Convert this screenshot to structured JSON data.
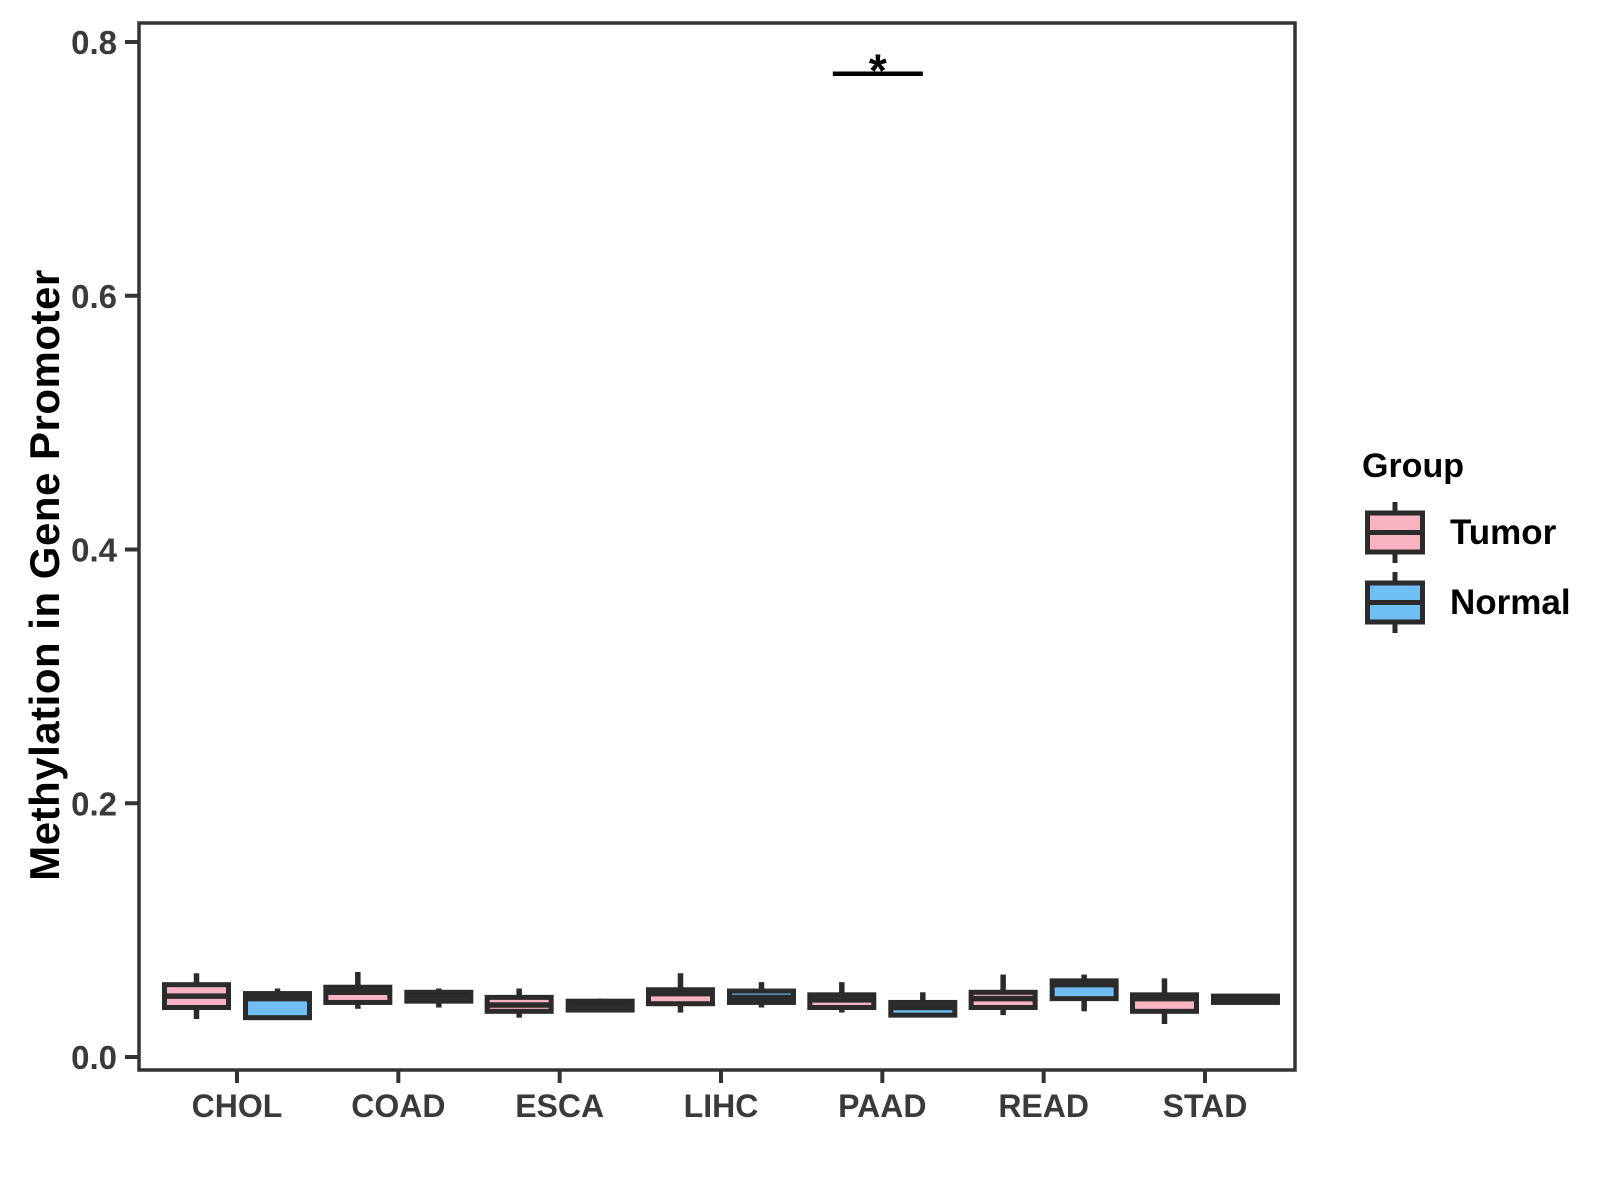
{
  "chart_data": {
    "type": "boxplot",
    "ylabel": "Methylation in Gene Promoter",
    "xlabel": "",
    "ylim": [
      0.0,
      0.8
    ],
    "grid": false,
    "yticks": [
      {
        "label": "0.0",
        "value": 0.0
      },
      {
        "label": "0.2",
        "value": 0.2
      },
      {
        "label": "0.4",
        "value": 0.4
      },
      {
        "label": "0.6",
        "value": 0.6
      },
      {
        "label": "0.8",
        "value": 0.8
      }
    ],
    "categories": [
      "CHOL",
      "COAD",
      "ESCA",
      "LIHC",
      "PAAD",
      "READ",
      "STAD"
    ],
    "legend": {
      "title": "Group",
      "position": "right",
      "entries": [
        {
          "label": "Tumor",
          "color": "#F9B3C3"
        },
        {
          "label": "Normal",
          "color": "#6FBEF4"
        }
      ]
    },
    "colors": {
      "tumor_fill": "#F9B3C3",
      "normal_fill": "#6FBEF4",
      "box_border": "#2B2B2B",
      "axis": "#333333",
      "tick_text": "#3A3A3A"
    },
    "series": [
      {
        "name": "Tumor",
        "color": "#F9B3C3",
        "boxes": [
          {
            "category": "CHOL",
            "low": 0.03,
            "q1": 0.039,
            "median": 0.048,
            "q3": 0.057,
            "high": 0.066
          },
          {
            "category": "COAD",
            "low": 0.038,
            "q1": 0.043,
            "median": 0.051,
            "q3": 0.055,
            "high": 0.067
          },
          {
            "category": "ESCA",
            "low": 0.031,
            "q1": 0.036,
            "median": 0.041,
            "q3": 0.047,
            "high": 0.054
          },
          {
            "category": "LIHC",
            "low": 0.035,
            "q1": 0.042,
            "median": 0.05,
            "q3": 0.053,
            "high": 0.066
          },
          {
            "category": "PAAD",
            "low": 0.035,
            "q1": 0.039,
            "median": 0.045,
            "q3": 0.049,
            "high": 0.059
          },
          {
            "category": "READ",
            "low": 0.033,
            "q1": 0.039,
            "median": 0.046,
            "q3": 0.051,
            "high": 0.065
          },
          {
            "category": "STAD",
            "low": 0.026,
            "q1": 0.036,
            "median": 0.046,
            "q3": 0.049,
            "high": 0.062
          }
        ]
      },
      {
        "name": "Normal",
        "color": "#6FBEF4",
        "boxes": [
          {
            "category": "CHOL",
            "low": 0.031,
            "q1": 0.031,
            "median": 0.046,
            "q3": 0.05,
            "high": 0.054
          },
          {
            "category": "COAD",
            "low": 0.039,
            "q1": 0.044,
            "median": 0.048,
            "q3": 0.051,
            "high": 0.054
          },
          {
            "category": "ESCA",
            "low": 0.036,
            "q1": 0.037,
            "median": 0.041,
            "q3": 0.044,
            "high": 0.046
          },
          {
            "category": "LIHC",
            "low": 0.039,
            "q1": 0.043,
            "median": 0.047,
            "q3": 0.052,
            "high": 0.059
          },
          {
            "category": "PAAD",
            "low": 0.032,
            "q1": 0.033,
            "median": 0.039,
            "q3": 0.043,
            "high": 0.051
          },
          {
            "category": "READ",
            "low": 0.036,
            "q1": 0.046,
            "median": 0.057,
            "q3": 0.06,
            "high": 0.065
          },
          {
            "category": "STAD",
            "low": 0.043,
            "q1": 0.043,
            "median": 0.046,
            "q3": 0.048,
            "high": 0.049
          }
        ]
      }
    ],
    "annotation": {
      "label": "*",
      "category": "PAAD",
      "between": [
        "Tumor",
        "Normal"
      ],
      "y_value": 0.775
    }
  }
}
